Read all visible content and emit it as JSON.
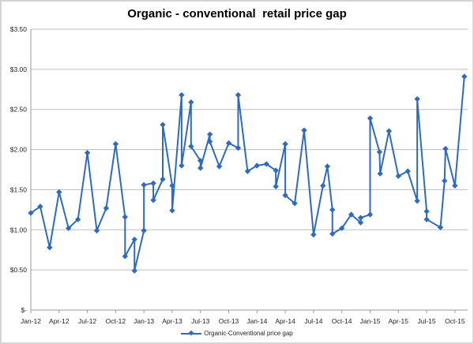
{
  "chart_data": {
    "type": "line",
    "title": "Organic - conventional  retail price gap",
    "xlabel": "",
    "ylabel": "",
    "ylim": [
      0,
      3.5
    ],
    "y_ticks": [
      "$-",
      "$0.50",
      "$1.00",
      "$1.50",
      "$2.00",
      "$2.50",
      "$3.00",
      "$3.50"
    ],
    "x_ticks": [
      "Jan-12",
      "Apr-12",
      "Jul-12",
      "Oct-12",
      "Jan-13",
      "Apr-13",
      "Jul-13",
      "Oct-13",
      "Jan-14",
      "Apr-14",
      "Jul-14",
      "Oct-14",
      "Jan-15",
      "Apr-15",
      "Jul-15",
      "Oct-15"
    ],
    "grid": true,
    "legend": "bottom",
    "color": "#2e6bbd",
    "series": [
      {
        "name": "Organic-Conventional price gap",
        "points": [
          [
            "2012-01-01",
            1.21
          ],
          [
            "2012-02-01",
            1.29
          ],
          [
            "2012-03-01",
            0.78
          ],
          [
            "2012-04-01",
            1.47
          ],
          [
            "2012-05-01",
            1.02
          ],
          [
            "2012-06-01",
            1.13
          ],
          [
            "2012-07-01",
            1.96
          ],
          [
            "2012-08-01",
            0.99
          ],
          [
            "2012-09-01",
            1.27
          ],
          [
            "2012-10-01",
            2.07
          ],
          [
            "2012-11-01",
            1.16
          ],
          [
            "2012-11-01",
            0.67
          ],
          [
            "2012-12-01",
            0.88
          ],
          [
            "2012-12-01",
            0.49
          ],
          [
            "2013-01-01",
            0.99
          ],
          [
            "2013-01-01",
            1.56
          ],
          [
            "2013-02-01",
            1.58
          ],
          [
            "2013-02-01",
            1.37
          ],
          [
            "2013-03-01",
            1.63
          ],
          [
            "2013-03-01",
            2.31
          ],
          [
            "2013-04-01",
            1.55
          ],
          [
            "2013-04-01",
            1.24
          ],
          [
            "2013-05-01",
            2.68
          ],
          [
            "2013-05-01",
            1.8
          ],
          [
            "2013-06-01",
            2.59
          ],
          [
            "2013-06-01",
            2.04
          ],
          [
            "2013-07-01",
            1.86
          ],
          [
            "2013-07-01",
            1.77
          ],
          [
            "2013-08-01",
            2.19
          ],
          [
            "2013-08-01",
            2.1
          ],
          [
            "2013-09-01",
            1.79
          ],
          [
            "2013-10-01",
            2.08
          ],
          [
            "2013-11-01",
            2.02
          ],
          [
            "2013-11-01",
            2.68
          ],
          [
            "2013-12-01",
            1.73
          ],
          [
            "2014-01-01",
            1.8
          ],
          [
            "2014-02-01",
            1.82
          ],
          [
            "2014-03-01",
            1.74
          ],
          [
            "2014-03-01",
            1.54
          ],
          [
            "2014-04-01",
            2.07
          ],
          [
            "2014-04-01",
            1.43
          ],
          [
            "2014-05-01",
            1.33
          ],
          [
            "2014-06-01",
            2.24
          ],
          [
            "2014-07-01",
            0.94
          ],
          [
            "2014-08-01",
            1.55
          ],
          [
            "2014-08-15",
            1.79
          ],
          [
            "2014-09-01",
            1.25
          ],
          [
            "2014-09-01",
            0.95
          ],
          [
            "2014-10-01",
            1.02
          ],
          [
            "2014-11-01",
            1.19
          ],
          [
            "2014-12-01",
            1.09
          ],
          [
            "2014-12-01",
            1.15
          ],
          [
            "2015-01-01",
            1.19
          ],
          [
            "2015-01-01",
            2.39
          ],
          [
            "2015-02-01",
            1.97
          ],
          [
            "2015-02-03",
            1.7
          ],
          [
            "2015-03-01",
            2.23
          ],
          [
            "2015-04-01",
            1.67
          ],
          [
            "2015-05-01",
            1.73
          ],
          [
            "2015-06-01",
            1.36
          ],
          [
            "2015-06-01",
            2.63
          ],
          [
            "2015-07-01",
            1.23
          ],
          [
            "2015-07-01",
            1.13
          ],
          [
            "2015-08-15",
            1.03
          ],
          [
            "2015-08-28",
            1.61
          ],
          [
            "2015-09-01",
            2.01
          ],
          [
            "2015-10-01",
            1.55
          ],
          [
            "2015-11-01",
            2.91
          ]
        ]
      }
    ]
  }
}
